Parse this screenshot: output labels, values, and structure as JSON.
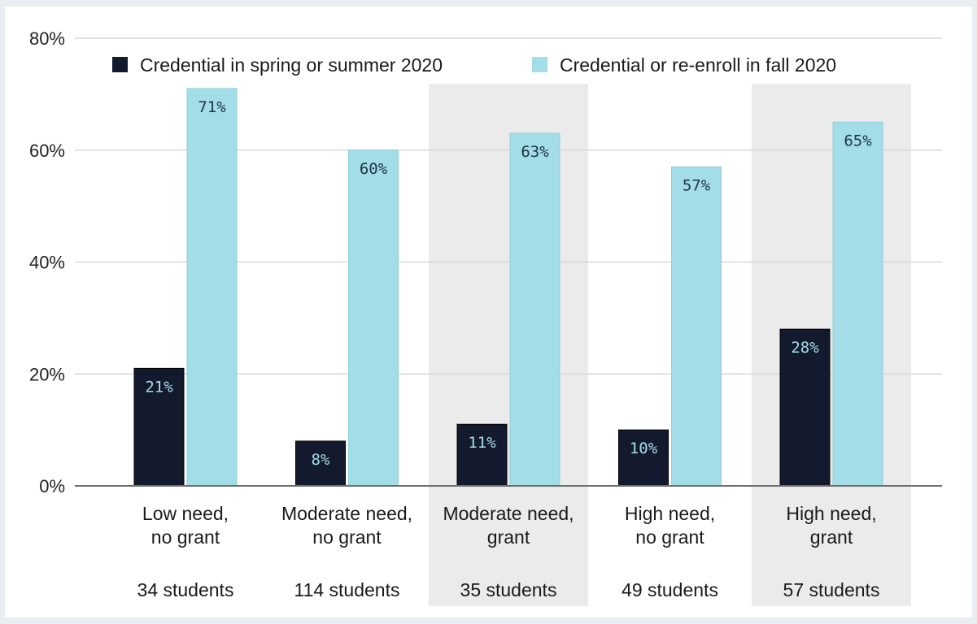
{
  "colors": {
    "series1": "#141a2e",
    "series2": "#a3dde8",
    "label_on_dark": "#a3dde8",
    "label_on_light": "#1e3442",
    "highlight": "#ebebeb",
    "grid": "#d9d9d9",
    "axis": "#6e6e6e"
  },
  "chart_data": {
    "type": "bar",
    "title": "",
    "xlabel": "",
    "ylabel": "",
    "ylim": [
      0,
      80
    ],
    "yticks": [
      "0%",
      "20%",
      "40%",
      "60%",
      "80%"
    ],
    "grid": true,
    "legend_position": "top",
    "categories": [
      {
        "line1": "Low need,",
        "line2": "no grant",
        "count": "34 students",
        "highlighted": false
      },
      {
        "line1": "Moderate need,",
        "line2": "no grant",
        "count": "114 students",
        "highlighted": false
      },
      {
        "line1": "Moderate need,",
        "line2": "grant",
        "count": "35 students",
        "highlighted": true
      },
      {
        "line1": "High need,",
        "line2": "no grant",
        "count": "49 students",
        "highlighted": false
      },
      {
        "line1": "High need,",
        "line2": "grant",
        "count": "57 students",
        "highlighted": true
      }
    ],
    "series": [
      {
        "name": "Credential in spring or summer 2020",
        "values": [
          21,
          8,
          11,
          10,
          28
        ],
        "labels": [
          "21%",
          "8%",
          "11%",
          "10%",
          "28%"
        ]
      },
      {
        "name": "Credential or re-enroll in fall 2020",
        "values": [
          71,
          60,
          63,
          57,
          65
        ],
        "labels": [
          "71%",
          "60%",
          "63%",
          "57%",
          "65%"
        ]
      }
    ]
  }
}
